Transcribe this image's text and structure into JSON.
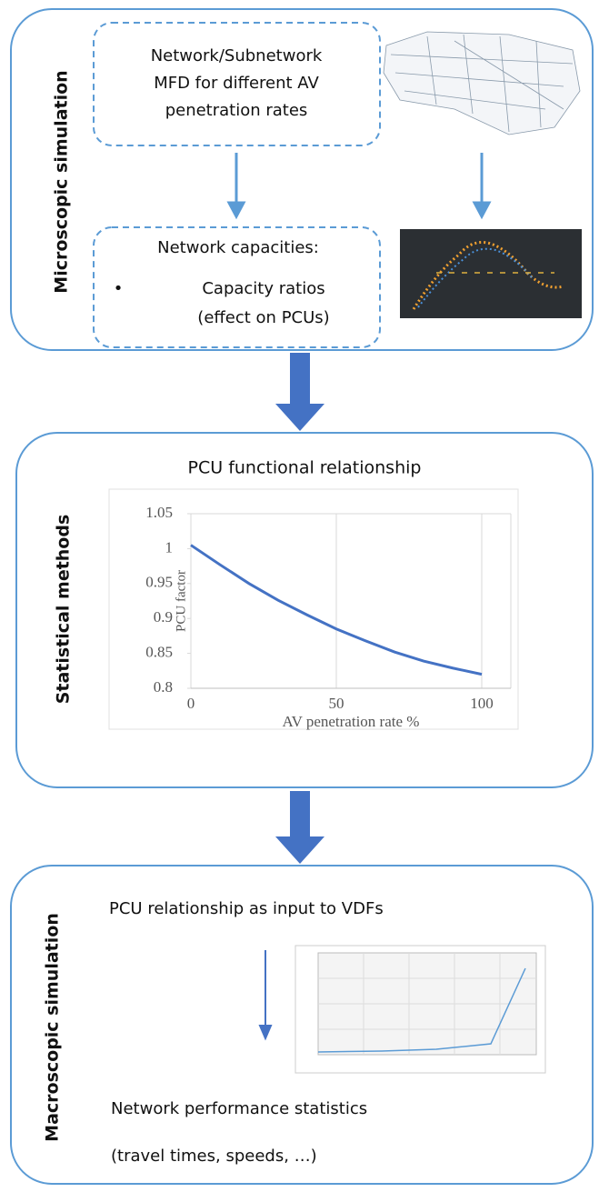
{
  "panels": [
    {
      "label": "Microscopic simulation",
      "boxes": [
        {
          "lines": [
            "Network/Subnetwork",
            "MFD for different AV",
            "penetration rates"
          ]
        },
        {
          "title": "Network capacities:",
          "bullet": "•",
          "lines": [
            "Capacity ratios",
            "(effect on PCUs)"
          ]
        }
      ]
    },
    {
      "label": "Statistical methods",
      "title": "PCU functional relationship",
      "chart": {
        "type": "line",
        "x": [
          0,
          10,
          20,
          30,
          40,
          50,
          60,
          70,
          80,
          90,
          100
        ],
        "values": [
          1.005,
          0.977,
          0.95,
          0.926,
          0.905,
          0.885,
          0.868,
          0.852,
          0.839,
          0.829,
          0.82
        ],
        "color": "#4472c4",
        "xlabel": "AV penetration rate %",
        "ylabel": "PCU factor",
        "xlim": [
          0,
          110
        ],
        "xticks": [
          0,
          50,
          100
        ],
        "ylim": [
          0.8,
          1.05
        ],
        "yticks": [
          {
            "value": 0.8,
            "label": "0.8"
          },
          {
            "value": 0.85,
            "label": "0.85"
          },
          {
            "value": 0.9,
            "label": "0.9"
          },
          {
            "value": 0.95,
            "label": "0.95"
          },
          1,
          {
            "value": 1.05,
            "label": "1.05"
          }
        ]
      }
    },
    {
      "label": "Macroscopic simulation",
      "lines": [
        "PCU relationship as input to VDFs",
        "Network performance statistics",
        "(travel times, speeds, …)"
      ]
    }
  ]
}
